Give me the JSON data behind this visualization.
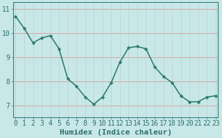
{
  "x": [
    0,
    1,
    2,
    3,
    4,
    5,
    6,
    7,
    8,
    9,
    10,
    11,
    12,
    13,
    14,
    15,
    16,
    17,
    18,
    19,
    20,
    21,
    22,
    23
  ],
  "y": [
    10.7,
    10.2,
    9.6,
    9.8,
    9.9,
    9.35,
    8.1,
    7.8,
    7.35,
    7.05,
    7.35,
    7.95,
    8.8,
    9.4,
    9.45,
    9.35,
    8.6,
    8.2,
    7.95,
    7.4,
    7.15,
    7.15,
    7.35,
    7.4
  ],
  "line_color": "#2e7d6e",
  "marker": "D",
  "marker_size": 2.5,
  "line_width": 1.2,
  "bg_color": "#c8e8e8",
  "plot_bg_color": "#c8e8e8",
  "grid_color_h": "#d8a0a0",
  "grid_color_v": "#c0d4d4",
  "xlabel": "Humidex (Indice chaleur)",
  "xlabel_fontsize": 8,
  "xlabel_bold": true,
  "yticks": [
    7,
    8,
    9,
    10,
    11
  ],
  "xticks": [
    0,
    1,
    2,
    3,
    4,
    5,
    6,
    7,
    8,
    9,
    10,
    11,
    12,
    13,
    14,
    15,
    16,
    17,
    18,
    19,
    20,
    21,
    22,
    23
  ],
  "xlim": [
    -0.3,
    23.3
  ],
  "ylim": [
    6.5,
    11.3
  ],
  "tick_fontsize": 7,
  "tick_color": "#2e6e6e",
  "spine_color": "#2e7d7d",
  "fig_bg": "#c8e8e8"
}
